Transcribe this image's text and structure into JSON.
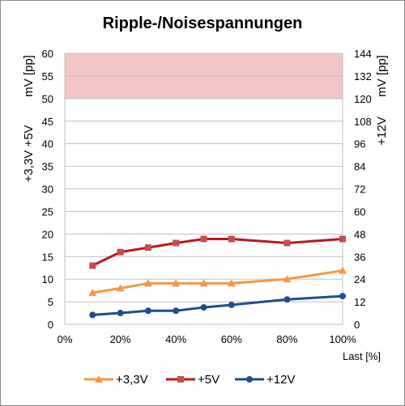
{
  "chart_data": {
    "type": "line",
    "title": "Ripple-/Noisespannungen",
    "xlabel": "Last [%]",
    "ylabel_left": [
      "mV [pp]",
      "+3,3V +5V"
    ],
    "ylabel_right": [
      "mV [pp]",
      "+12V"
    ],
    "x": [
      10,
      20,
      30,
      40,
      50,
      60,
      80,
      100
    ],
    "x_ticks": [
      0,
      20,
      40,
      60,
      80,
      100
    ],
    "x_tick_labels": [
      "0%",
      "20%",
      "40%",
      "60%",
      "80%",
      "100%"
    ],
    "ylim_left": [
      0,
      60
    ],
    "y_ticks_left": [
      0,
      5,
      10,
      15,
      20,
      25,
      30,
      35,
      40,
      45,
      50,
      55,
      60
    ],
    "ylim_right": [
      0,
      144
    ],
    "y_ticks_right": [
      0,
      12,
      24,
      36,
      48,
      60,
      72,
      84,
      96,
      108,
      120,
      132,
      144
    ],
    "limit_band_left": [
      50,
      60
    ],
    "grid": true,
    "legend_position": "bottom",
    "series": [
      {
        "name": "+3,3V",
        "axis": "left",
        "color": "#f79646",
        "marker": "triangle",
        "values": [
          7,
          8,
          9.1,
          9.1,
          9.1,
          9.1,
          10,
          11.9
        ]
      },
      {
        "name": "+5V",
        "axis": "left",
        "color": "#c0161b",
        "marker": "square",
        "values": [
          13,
          16,
          17,
          18,
          18.9,
          18.9,
          18,
          18.9
        ]
      },
      {
        "name": "+12V",
        "axis": "right",
        "color": "#1f4e8c",
        "marker": "circle",
        "values": [
          5,
          6,
          7.2,
          7.2,
          9,
          10.3,
          13.2,
          15
        ]
      }
    ]
  },
  "colors": {
    "limit_band": "#f2c4c4",
    "grid": "#bfbfbf"
  }
}
